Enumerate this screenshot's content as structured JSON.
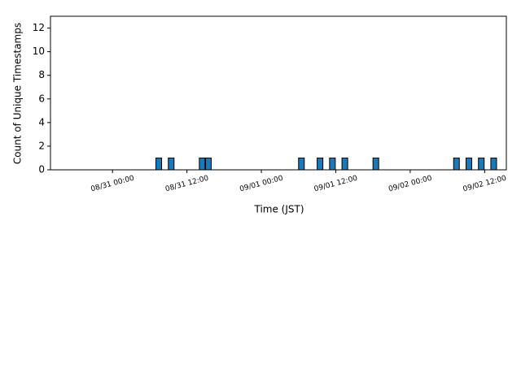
{
  "chart_data": {
    "type": "bar",
    "x": [
      "08/31 07:00",
      "08/31 09:00",
      "08/31 14:00",
      "08/31 15:00",
      "09/01 06:00",
      "09/01 09:00",
      "09/01 11:00",
      "09/01 13:00",
      "09/01 18:00",
      "09/02 07:00",
      "09/02 09:00",
      "09/02 11:00",
      "09/02 13:00"
    ],
    "values": [
      1,
      1,
      1,
      1,
      1,
      1,
      1,
      1,
      1,
      1,
      1,
      1,
      1
    ],
    "color": "#1f77b4",
    "xlabel": "Time (JST)",
    "ylabel": "Count of Unique Timestamps",
    "xlim": [
      "08/30 14:00",
      "09/02 15:30"
    ],
    "xticks": [
      "08/31 00:00",
      "08/31 12:00",
      "09/01 00:00",
      "09/01 12:00",
      "09/02 00:00",
      "09/02 12:00"
    ],
    "ylim": [
      0,
      13
    ],
    "yticks": [
      0,
      2,
      4,
      6,
      8,
      10,
      12
    ],
    "grid": false
  }
}
